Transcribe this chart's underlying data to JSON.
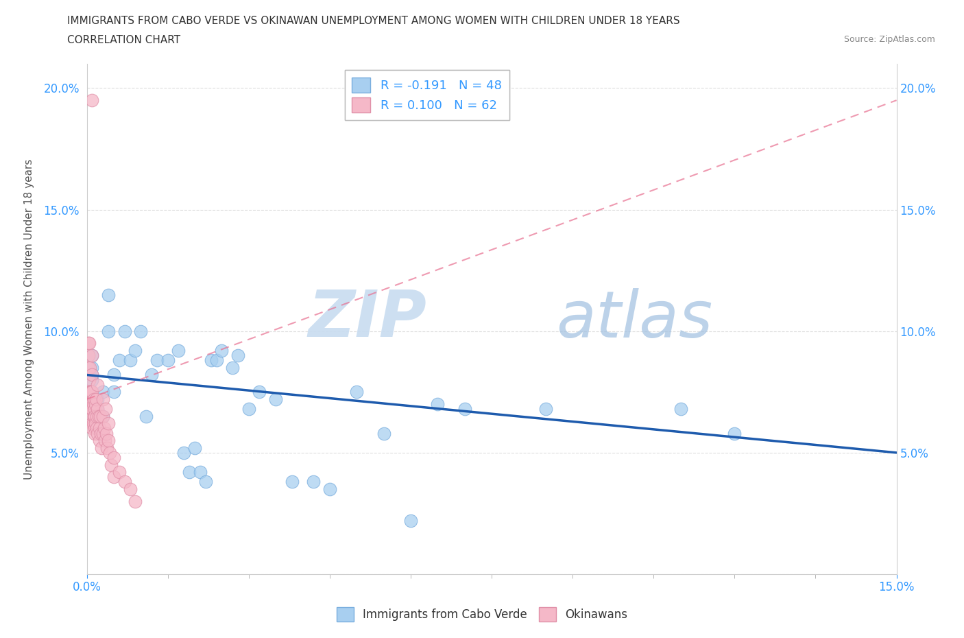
{
  "title_line1": "IMMIGRANTS FROM CABO VERDE VS OKINAWAN UNEMPLOYMENT AMONG WOMEN WITH CHILDREN UNDER 18 YEARS",
  "title_line2": "CORRELATION CHART",
  "source": "Source: ZipAtlas.com",
  "ylabel": "Unemployment Among Women with Children Under 18 years",
  "watermark_zip": "ZIP",
  "watermark_atlas": "atlas",
  "cabo_verde_R": -0.191,
  "cabo_verde_N": 48,
  "okinawan_R": 0.1,
  "okinawan_N": 62,
  "cabo_verde_color": "#A8CFF0",
  "cabo_verde_edge": "#7AAEDE",
  "okinawan_color": "#F5B8C8",
  "okinawan_edge": "#E090A8",
  "cabo_verde_line_color": "#1E5BAD",
  "okinawan_line_color": "#E87090",
  "xlim": [
    0.0,
    0.15
  ],
  "ylim": [
    0.0,
    0.21
  ],
  "xtick_left_label": "0.0%",
  "xtick_right_label": "15.0%",
  "ytick_labels": [
    "",
    "5.0%",
    "10.0%",
    "15.0%",
    "20.0%"
  ],
  "ytick_values": [
    0.0,
    0.05,
    0.1,
    0.15,
    0.2
  ],
  "cabo_verde_x": [
    0.001,
    0.001,
    0.001,
    0.001,
    0.001,
    0.002,
    0.002,
    0.002,
    0.003,
    0.003,
    0.004,
    0.004,
    0.005,
    0.005,
    0.006,
    0.007,
    0.008,
    0.009,
    0.01,
    0.011,
    0.012,
    0.013,
    0.015,
    0.017,
    0.018,
    0.019,
    0.02,
    0.021,
    0.022,
    0.023,
    0.024,
    0.025,
    0.027,
    0.028,
    0.03,
    0.032,
    0.035,
    0.038,
    0.042,
    0.045,
    0.05,
    0.055,
    0.06,
    0.065,
    0.07,
    0.085,
    0.11,
    0.12
  ],
  "cabo_verde_y": [
    0.085,
    0.08,
    0.09,
    0.075,
    0.082,
    0.072,
    0.068,
    0.06,
    0.075,
    0.065,
    0.115,
    0.1,
    0.082,
    0.075,
    0.088,
    0.1,
    0.088,
    0.092,
    0.1,
    0.065,
    0.082,
    0.088,
    0.088,
    0.092,
    0.05,
    0.042,
    0.052,
    0.042,
    0.038,
    0.088,
    0.088,
    0.092,
    0.085,
    0.09,
    0.068,
    0.075,
    0.072,
    0.038,
    0.038,
    0.035,
    0.075,
    0.058,
    0.022,
    0.07,
    0.068,
    0.068,
    0.068,
    0.058
  ],
  "okinawan_x": [
    0.0003,
    0.0003,
    0.0003,
    0.0004,
    0.0004,
    0.0005,
    0.0005,
    0.0006,
    0.0006,
    0.0006,
    0.0007,
    0.0007,
    0.0008,
    0.0008,
    0.0009,
    0.0009,
    0.001,
    0.001,
    0.001,
    0.001,
    0.001,
    0.001,
    0.0012,
    0.0012,
    0.0013,
    0.0013,
    0.0014,
    0.0014,
    0.0015,
    0.0015,
    0.0016,
    0.0016,
    0.0017,
    0.0018,
    0.0019,
    0.002,
    0.002,
    0.002,
    0.0022,
    0.0023,
    0.0024,
    0.0025,
    0.0026,
    0.0027,
    0.003,
    0.003,
    0.003,
    0.0032,
    0.0033,
    0.0035,
    0.0036,
    0.0038,
    0.004,
    0.004,
    0.0042,
    0.0045,
    0.005,
    0.005,
    0.006,
    0.007,
    0.008,
    0.009
  ],
  "okinawan_y": [
    0.095,
    0.09,
    0.085,
    0.08,
    0.075,
    0.095,
    0.075,
    0.085,
    0.075,
    0.07,
    0.075,
    0.065,
    0.075,
    0.068,
    0.07,
    0.062,
    0.195,
    0.09,
    0.082,
    0.075,
    0.068,
    0.06,
    0.07,
    0.062,
    0.072,
    0.065,
    0.068,
    0.06,
    0.065,
    0.058,
    0.07,
    0.062,
    0.072,
    0.065,
    0.06,
    0.078,
    0.068,
    0.058,
    0.065,
    0.06,
    0.055,
    0.065,
    0.058,
    0.052,
    0.072,
    0.065,
    0.058,
    0.06,
    0.055,
    0.068,
    0.058,
    0.052,
    0.062,
    0.055,
    0.05,
    0.045,
    0.048,
    0.04,
    0.042,
    0.038,
    0.035,
    0.03
  ]
}
